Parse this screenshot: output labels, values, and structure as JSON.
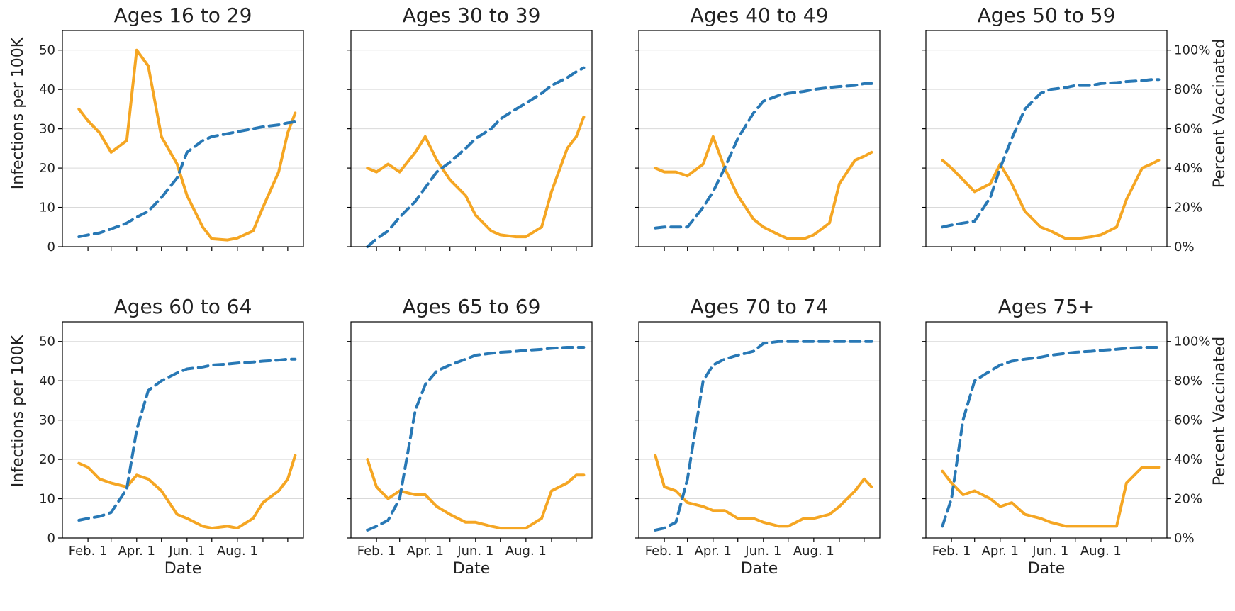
{
  "colors": {
    "infections": "#f5a623",
    "vaccinated": "#2878b5"
  },
  "axes": {
    "left_label": "Infections per 100K",
    "right_label": "Percent Vaccinated",
    "x_label": "Date",
    "left_ticks": [
      "0",
      "10",
      "20",
      "30",
      "40",
      "50"
    ],
    "right_ticks": [
      "0%",
      "20%",
      "40%",
      "60%",
      "80%",
      "100%"
    ],
    "x_ticks": [
      "Feb. 1",
      "Apr. 1",
      "Jun. 1",
      "Aug. 1"
    ]
  },
  "chart_data": [
    {
      "type": "line",
      "title": "Ages 16 to 29",
      "ylim": [
        0,
        55
      ],
      "y2lim": [
        0,
        110
      ],
      "xlim": [
        "2021-01-01",
        "2021-10-20"
      ],
      "grid": true,
      "x": [
        "2021-01-21",
        "2021-02-01",
        "2021-02-15",
        "2021-03-01",
        "2021-03-20",
        "2021-04-01",
        "2021-04-15",
        "2021-05-01",
        "2021-05-20",
        "2021-06-01",
        "2021-06-20",
        "2021-07-01",
        "2021-07-20",
        "2021-08-01",
        "2021-08-20",
        "2021-09-01",
        "2021-09-20",
        "2021-10-01",
        "2021-10-10"
      ],
      "series": [
        {
          "axis": "left",
          "values": [
            35,
            32,
            29,
            24,
            27,
            50,
            46,
            28,
            21,
            13,
            5,
            2,
            1.7,
            2.2,
            4,
            10,
            19,
            29,
            34
          ]
        },
        {
          "axis": "right",
          "values": [
            5,
            6,
            7,
            9,
            12,
            15,
            18,
            25,
            35,
            48,
            54,
            56,
            57.5,
            58.5,
            60,
            61,
            62,
            63,
            63.5
          ]
        }
      ]
    },
    {
      "type": "line",
      "title": "Ages 30 to 39",
      "ylim": [
        0,
        55
      ],
      "y2lim": [
        0,
        110
      ],
      "xlim": [
        "2021-01-01",
        "2021-10-20"
      ],
      "grid": true,
      "x": [
        "2021-01-21",
        "2021-02-01",
        "2021-02-15",
        "2021-03-01",
        "2021-03-20",
        "2021-04-01",
        "2021-04-15",
        "2021-05-01",
        "2021-05-20",
        "2021-06-01",
        "2021-06-20",
        "2021-07-01",
        "2021-07-20",
        "2021-08-01",
        "2021-08-20",
        "2021-09-01",
        "2021-09-20",
        "2021-10-01",
        "2021-10-10"
      ],
      "series": [
        {
          "axis": "left",
          "values": [
            20,
            19,
            21,
            19,
            24,
            28,
            22,
            17,
            13,
            8,
            4,
            3,
            2.5,
            2.5,
            5,
            14,
            25,
            28,
            33
          ]
        },
        {
          "axis": "right",
          "values": [
            0,
            4,
            8,
            15,
            23,
            30,
            38,
            43,
            50,
            55,
            60,
            65,
            70,
            73,
            78,
            82,
            86,
            89,
            91
          ]
        }
      ]
    },
    {
      "type": "line",
      "title": "Ages 40 to 49",
      "ylim": [
        0,
        55
      ],
      "y2lim": [
        0,
        110
      ],
      "xlim": [
        "2021-01-01",
        "2021-10-20"
      ],
      "grid": true,
      "x": [
        "2021-01-21",
        "2021-02-01",
        "2021-02-15",
        "2021-03-01",
        "2021-03-20",
        "2021-04-01",
        "2021-04-15",
        "2021-05-01",
        "2021-05-20",
        "2021-06-01",
        "2021-06-20",
        "2021-07-01",
        "2021-07-20",
        "2021-08-01",
        "2021-08-20",
        "2021-09-01",
        "2021-09-20",
        "2021-10-01",
        "2021-10-10"
      ],
      "series": [
        {
          "axis": "left",
          "values": [
            20,
            19,
            19,
            18,
            21,
            28,
            20,
            13,
            7,
            5,
            3,
            2,
            2,
            3,
            6,
            16,
            22,
            23,
            24
          ]
        },
        {
          "axis": "right",
          "values": [
            9.5,
            10,
            10,
            10,
            20,
            28,
            40,
            55,
            68,
            74,
            77,
            78,
            79,
            80,
            81,
            81.5,
            82,
            83,
            83
          ]
        }
      ]
    },
    {
      "type": "line",
      "title": "Ages 50 to 59",
      "ylim": [
        0,
        55
      ],
      "y2lim": [
        0,
        110
      ],
      "xlim": [
        "2021-01-01",
        "2021-10-20"
      ],
      "grid": true,
      "x": [
        "2021-01-21",
        "2021-02-01",
        "2021-02-15",
        "2021-03-01",
        "2021-03-20",
        "2021-04-01",
        "2021-04-15",
        "2021-05-01",
        "2021-05-20",
        "2021-06-01",
        "2021-06-20",
        "2021-07-01",
        "2021-07-20",
        "2021-08-01",
        "2021-08-20",
        "2021-09-01",
        "2021-09-20",
        "2021-10-01",
        "2021-10-10"
      ],
      "series": [
        {
          "axis": "left",
          "values": [
            22,
            20,
            17,
            14,
            16,
            21,
            16,
            9,
            5,
            4,
            2,
            2,
            2.5,
            3,
            5,
            12,
            20,
            21,
            22
          ]
        },
        {
          "axis": "right",
          "values": [
            10,
            11,
            12,
            13,
            25,
            40,
            55,
            70,
            78,
            80,
            81,
            82,
            82,
            83,
            83.5,
            84,
            84.5,
            85,
            85
          ]
        }
      ]
    },
    {
      "type": "line",
      "title": "Ages 60 to 64",
      "ylim": [
        0,
        55
      ],
      "y2lim": [
        0,
        110
      ],
      "xlim": [
        "2021-01-01",
        "2021-10-20"
      ],
      "grid": true,
      "x": [
        "2021-01-21",
        "2021-02-01",
        "2021-02-15",
        "2021-03-01",
        "2021-03-20",
        "2021-04-01",
        "2021-04-15",
        "2021-05-01",
        "2021-05-20",
        "2021-06-01",
        "2021-06-20",
        "2021-07-01",
        "2021-07-20",
        "2021-08-01",
        "2021-08-20",
        "2021-09-01",
        "2021-09-20",
        "2021-10-01",
        "2021-10-10"
      ],
      "series": [
        {
          "axis": "left",
          "values": [
            19,
            18,
            15,
            14,
            13,
            16,
            15,
            12,
            6,
            5,
            3,
            2.5,
            3,
            2.5,
            5,
            9,
            12,
            15,
            21
          ]
        },
        {
          "axis": "right",
          "values": [
            9,
            10,
            11,
            13,
            25,
            55,
            75,
            80,
            84,
            86,
            87,
            88,
            88.5,
            89,
            89.5,
            90,
            90.5,
            91,
            91
          ]
        }
      ]
    },
    {
      "type": "line",
      "title": "Ages 65 to 69",
      "ylim": [
        0,
        55
      ],
      "y2lim": [
        0,
        110
      ],
      "xlim": [
        "2021-01-01",
        "2021-10-20"
      ],
      "grid": true,
      "x": [
        "2021-01-21",
        "2021-02-01",
        "2021-02-15",
        "2021-03-01",
        "2021-03-20",
        "2021-04-01",
        "2021-04-15",
        "2021-05-01",
        "2021-05-20",
        "2021-06-01",
        "2021-06-20",
        "2021-07-01",
        "2021-07-20",
        "2021-08-01",
        "2021-08-20",
        "2021-09-01",
        "2021-09-20",
        "2021-10-01",
        "2021-10-10"
      ],
      "series": [
        {
          "axis": "left",
          "values": [
            20,
            13,
            10,
            12,
            11,
            11,
            8,
            6,
            4,
            4,
            3,
            2.5,
            2.5,
            2.5,
            5,
            12,
            14,
            16,
            16
          ]
        },
        {
          "axis": "right",
          "values": [
            4,
            6,
            9,
            20,
            65,
            78,
            85,
            88,
            91,
            93,
            94,
            94.5,
            95,
            95.5,
            96,
            96.5,
            97,
            97,
            97
          ]
        }
      ]
    },
    {
      "type": "line",
      "title": "Ages 70 to 74",
      "ylim": [
        0,
        55
      ],
      "y2lim": [
        0,
        110
      ],
      "xlim": [
        "2021-01-01",
        "2021-10-20"
      ],
      "grid": true,
      "x": [
        "2021-01-21",
        "2021-02-01",
        "2021-02-15",
        "2021-03-01",
        "2021-03-20",
        "2021-04-01",
        "2021-04-15",
        "2021-05-01",
        "2021-05-20",
        "2021-06-01",
        "2021-06-20",
        "2021-07-01",
        "2021-07-20",
        "2021-08-01",
        "2021-08-20",
        "2021-09-01",
        "2021-09-20",
        "2021-10-01",
        "2021-10-10"
      ],
      "series": [
        {
          "axis": "left",
          "values": [
            21,
            13,
            12,
            9,
            8,
            7,
            7,
            5,
            5,
            4,
            3,
            3,
            5,
            5,
            6,
            8,
            12,
            15,
            13
          ]
        },
        {
          "axis": "right",
          "values": [
            4,
            5,
            8,
            30,
            80,
            88,
            91,
            93,
            95,
            99,
            100,
            100,
            100,
            100,
            100,
            100,
            100,
            100,
            100
          ]
        }
      ]
    },
    {
      "type": "line",
      "title": "Ages 75+",
      "ylim": [
        0,
        55
      ],
      "y2lim": [
        0,
        110
      ],
      "xlim": [
        "2021-01-01",
        "2021-10-20"
      ],
      "grid": true,
      "x": [
        "2021-01-21",
        "2021-02-01",
        "2021-02-15",
        "2021-03-01",
        "2021-03-20",
        "2021-04-01",
        "2021-04-15",
        "2021-05-01",
        "2021-05-20",
        "2021-06-01",
        "2021-06-20",
        "2021-07-01",
        "2021-07-20",
        "2021-08-01",
        "2021-08-20",
        "2021-09-01",
        "2021-09-20",
        "2021-10-01",
        "2021-10-10"
      ],
      "series": [
        {
          "axis": "left",
          "values": [
            17,
            14,
            11,
            12,
            10,
            8,
            9,
            6,
            5,
            4,
            3,
            3,
            3,
            3,
            3,
            14,
            18,
            18,
            18
          ]
        },
        {
          "axis": "right",
          "values": [
            6,
            20,
            60,
            80,
            85,
            88,
            90,
            91,
            92,
            93,
            94,
            94.5,
            95,
            95.5,
            96,
            96.5,
            97,
            97,
            97
          ]
        }
      ]
    }
  ]
}
